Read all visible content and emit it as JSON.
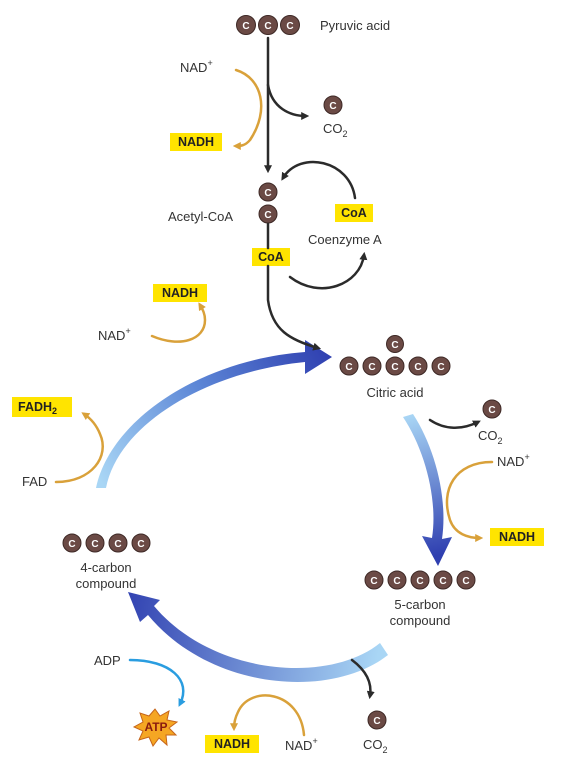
{
  "molecules": {
    "pyruvic_acid": "Pyruvic acid",
    "acetyl_coa": "Acetyl-CoA",
    "coenzyme_a": "Coenzyme A",
    "citric_acid": "Citric acid",
    "five_carbon": [
      "5-carbon",
      "compound"
    ],
    "four_carbon": [
      "4-carbon",
      "compound"
    ]
  },
  "carbon_letter": "C",
  "tags": {
    "coa": "CoA",
    "nadh": "NADH",
    "fadh2_main": "FADH",
    "fadh2_sub": "2",
    "atp": "ATP"
  },
  "cofactors": {
    "nad_main": "NAD",
    "nad_sup": "+",
    "co2_main": "CO",
    "co2_sub": "2",
    "fad": "FAD",
    "adp": "ADP"
  },
  "colors": {
    "carbon": "#6b4a45",
    "tag": "#ffe400",
    "gold_arrow": "#d9a13a",
    "cycle_blue_dark": "#2f3fb0",
    "cycle_blue_light": "#a9d6f5",
    "atp_star": "#f5a623"
  }
}
